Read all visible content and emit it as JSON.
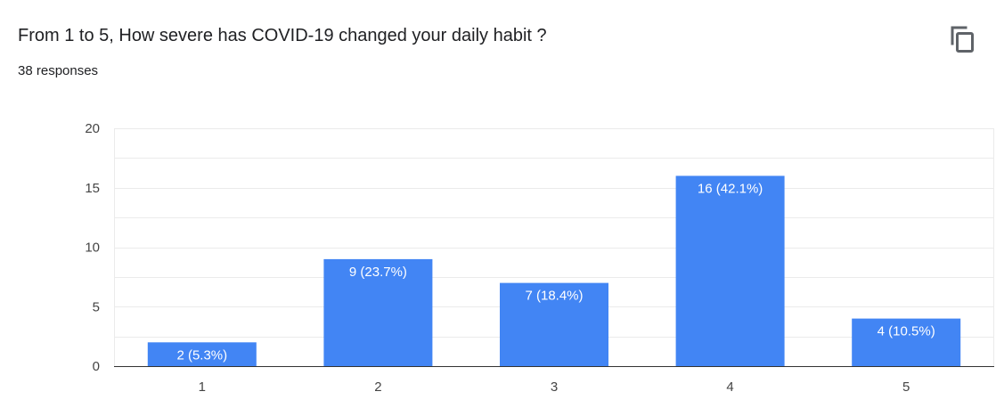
{
  "question": {
    "title": "From 1 to 5, How severe has COVID-19 changed your daily habit ?",
    "responses": "38 responses"
  },
  "toolbar": {
    "copy_icon": "copy-chart-icon"
  },
  "colors": {
    "bar": "#4285f4",
    "grid": "#ebebeb",
    "axis": "#333333",
    "tick_text": "#444444",
    "label_text": "#ffffff"
  },
  "chart_data": {
    "type": "bar",
    "categories": [
      "1",
      "2",
      "3",
      "4",
      "5"
    ],
    "values": [
      2,
      9,
      7,
      16,
      4
    ],
    "data_labels": [
      "2 (5.3%)",
      "9 (23.7%)",
      "7 (18.4%)",
      "16 (42.1%)",
      "4 (10.5%)"
    ],
    "title": "",
    "xlabel": "",
    "ylabel": "",
    "ylim": [
      0,
      20
    ],
    "yticks": [
      0,
      5,
      10,
      15,
      20
    ],
    "grid": true,
    "legend": "none"
  }
}
